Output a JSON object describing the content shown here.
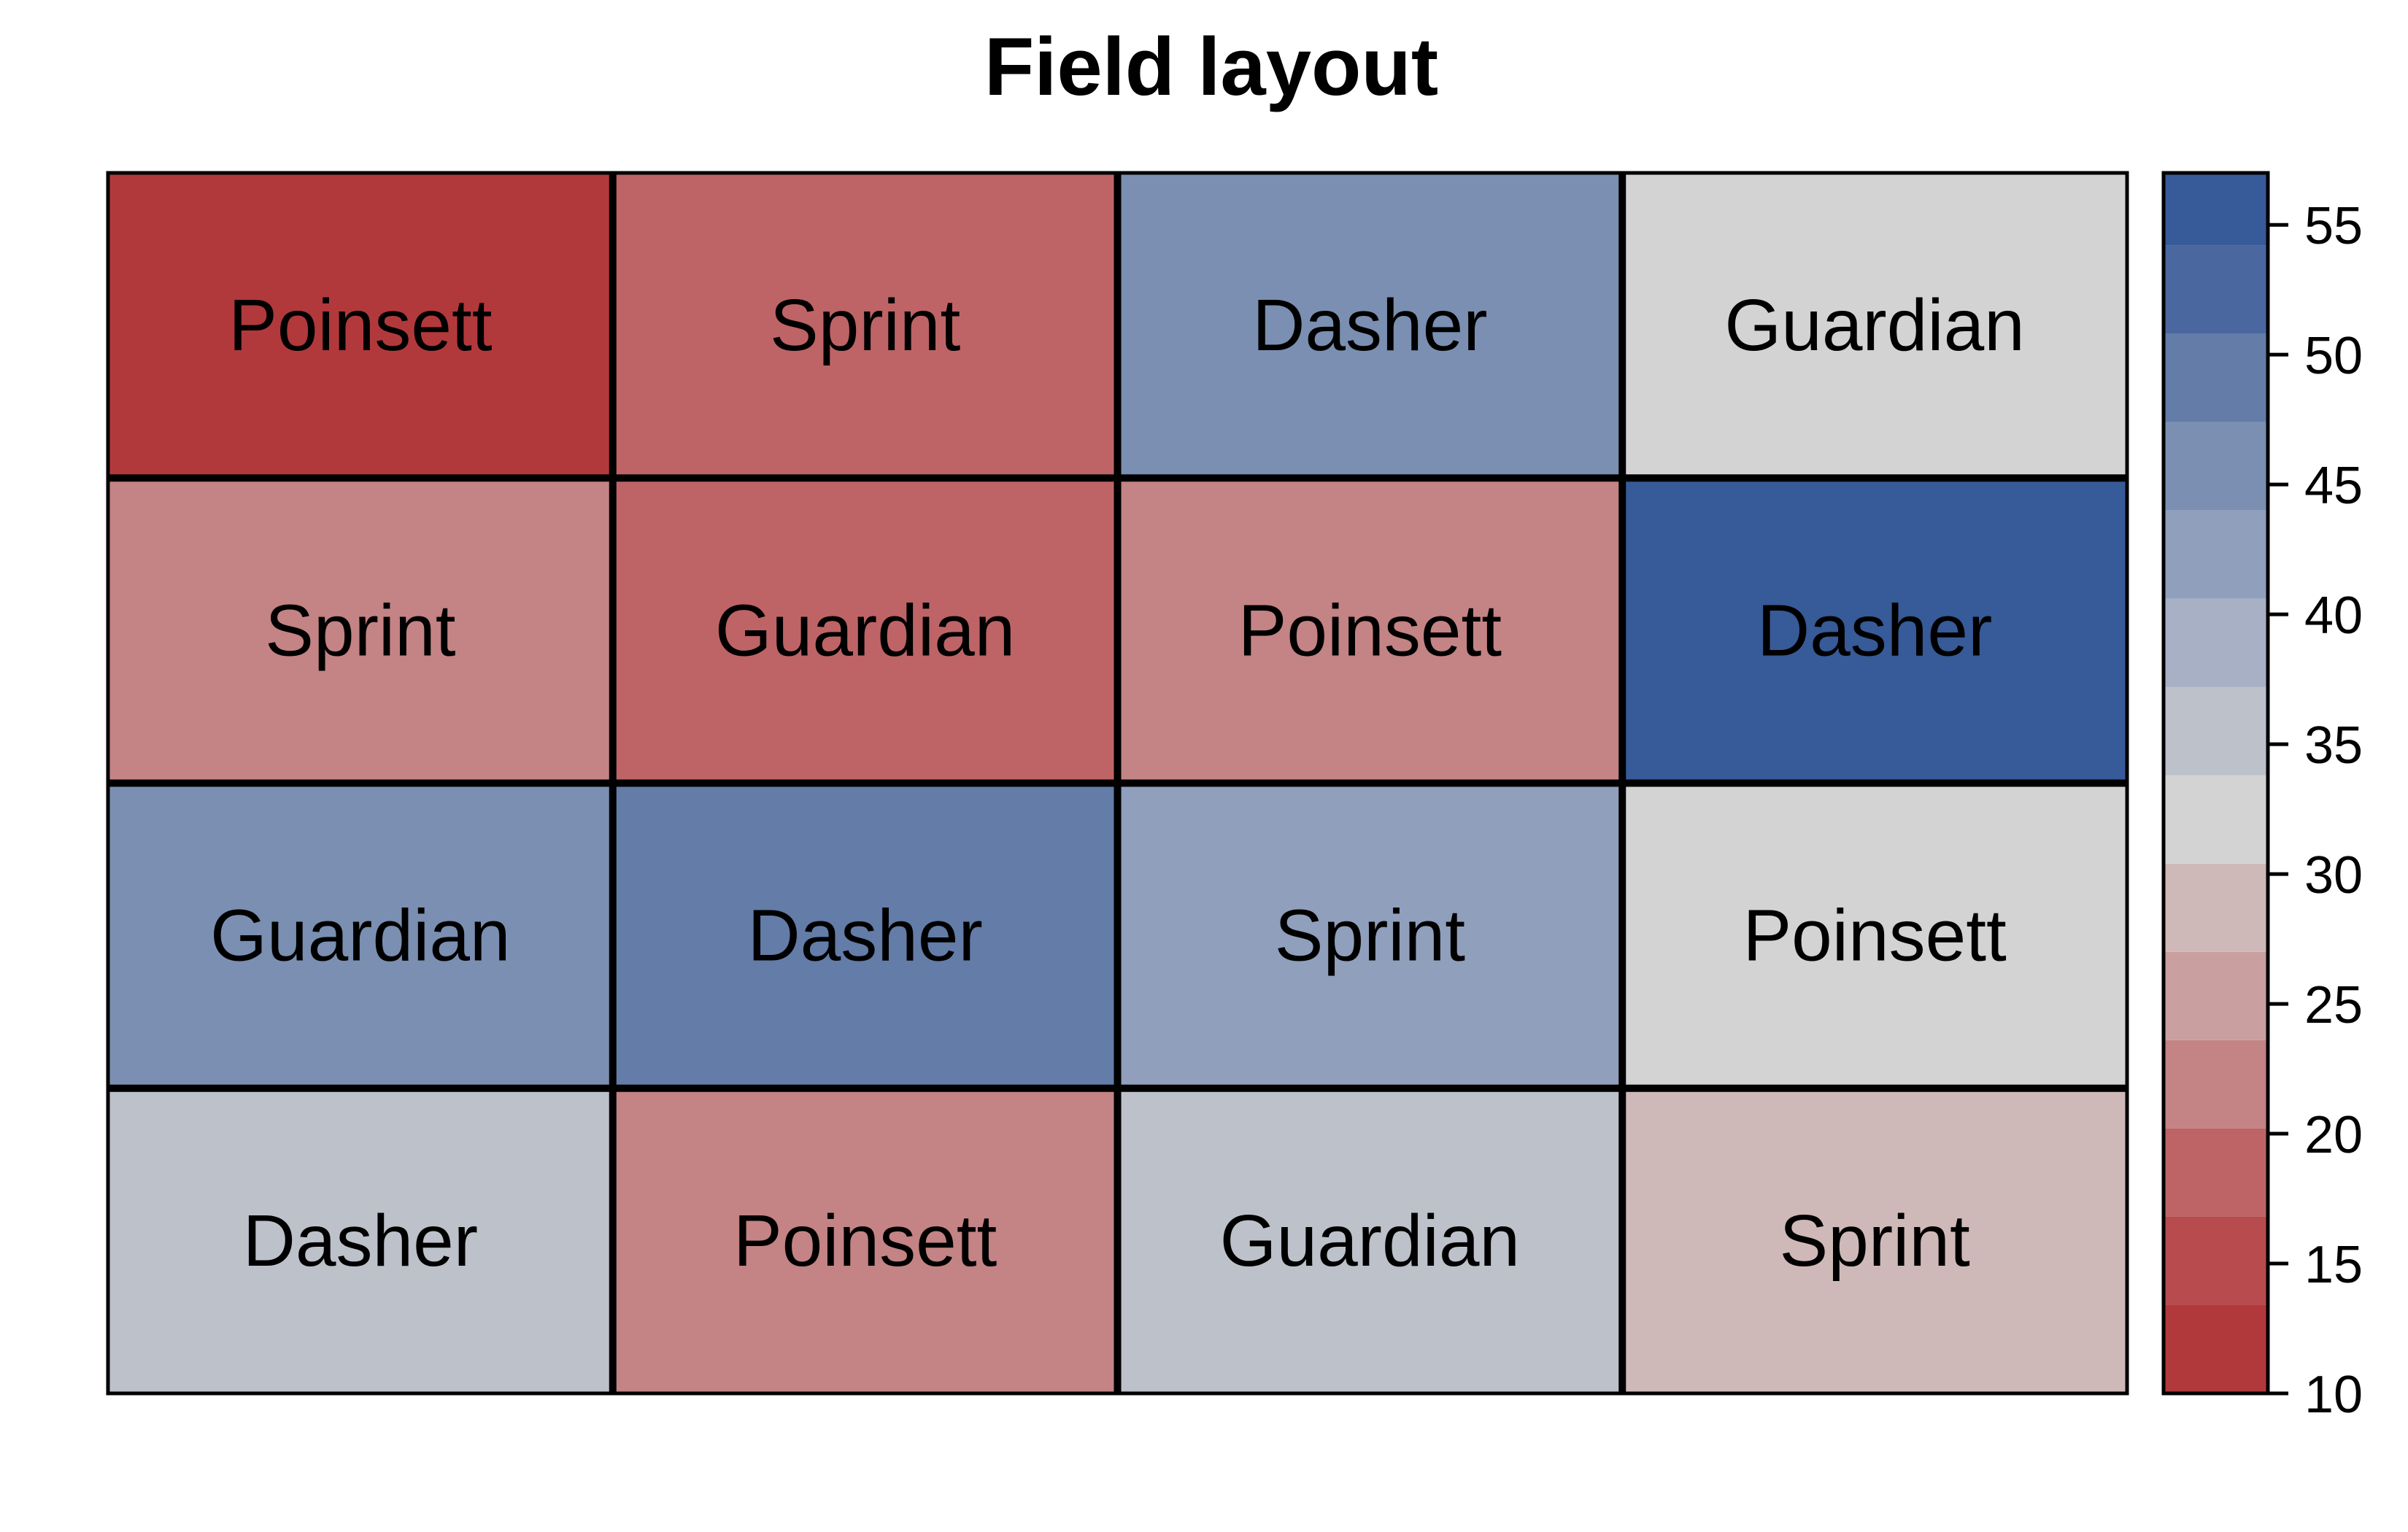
{
  "chart_data": {
    "type": "heatmap",
    "title": "Field layout",
    "xlabel": "",
    "ylabel": "",
    "rows": 4,
    "cols": 4,
    "cells": [
      [
        {
          "label": "Poinsett",
          "value": 12
        },
        {
          "label": "Sprint",
          "value": 17
        },
        {
          "label": "Dasher",
          "value": 45
        },
        {
          "label": "Guardian",
          "value": 32
        }
      ],
      [
        {
          "label": "Sprint",
          "value": 22
        },
        {
          "label": "Guardian",
          "value": 17
        },
        {
          "label": "Poinsett",
          "value": 22
        },
        {
          "label": "Dasher",
          "value": 55
        }
      ],
      [
        {
          "label": "Guardian",
          "value": 45
        },
        {
          "label": "Dasher",
          "value": 50
        },
        {
          "label": "Sprint",
          "value": 41
        },
        {
          "label": "Poinsett",
          "value": 32
        }
      ],
      [
        {
          "label": "Dasher",
          "value": 35
        },
        {
          "label": "Poinsett",
          "value": 22
        },
        {
          "label": "Guardian",
          "value": 35
        },
        {
          "label": "Sprint",
          "value": 28
        }
      ]
    ],
    "colorbar": {
      "range": [
        10,
        57
      ],
      "ticks": [
        10,
        15,
        20,
        25,
        30,
        35,
        40,
        45,
        50,
        55
      ],
      "bins": [
        {
          "from": 10,
          "to": 13.4,
          "color": "#B2393B"
        },
        {
          "from": 13.4,
          "to": 16.8,
          "color": "#B84B4D"
        },
        {
          "from": 16.8,
          "to": 20.2,
          "color": "#BE6466"
        },
        {
          "from": 20.2,
          "to": 23.6,
          "color": "#C48384"
        },
        {
          "from": 23.6,
          "to": 27.0,
          "color": "#CA9FA0"
        },
        {
          "from": 27.0,
          "to": 30.4,
          "color": "#CFB9B8"
        },
        {
          "from": 30.4,
          "to": 33.8,
          "color": "#D3D3D3"
        },
        {
          "from": 33.8,
          "to": 37.2,
          "color": "#BDC1CA"
        },
        {
          "from": 37.2,
          "to": 40.6,
          "color": "#A7B0C4"
        },
        {
          "from": 40.6,
          "to": 44.0,
          "color": "#909FBC"
        },
        {
          "from": 44.0,
          "to": 47.4,
          "color": "#7A8FB1"
        },
        {
          "from": 47.4,
          "to": 50.8,
          "color": "#637CA8"
        },
        {
          "from": 50.8,
          "to": 54.2,
          "color": "#4A679F"
        },
        {
          "from": 54.2,
          "to": 57.6,
          "color": "#375A98"
        }
      ]
    }
  }
}
